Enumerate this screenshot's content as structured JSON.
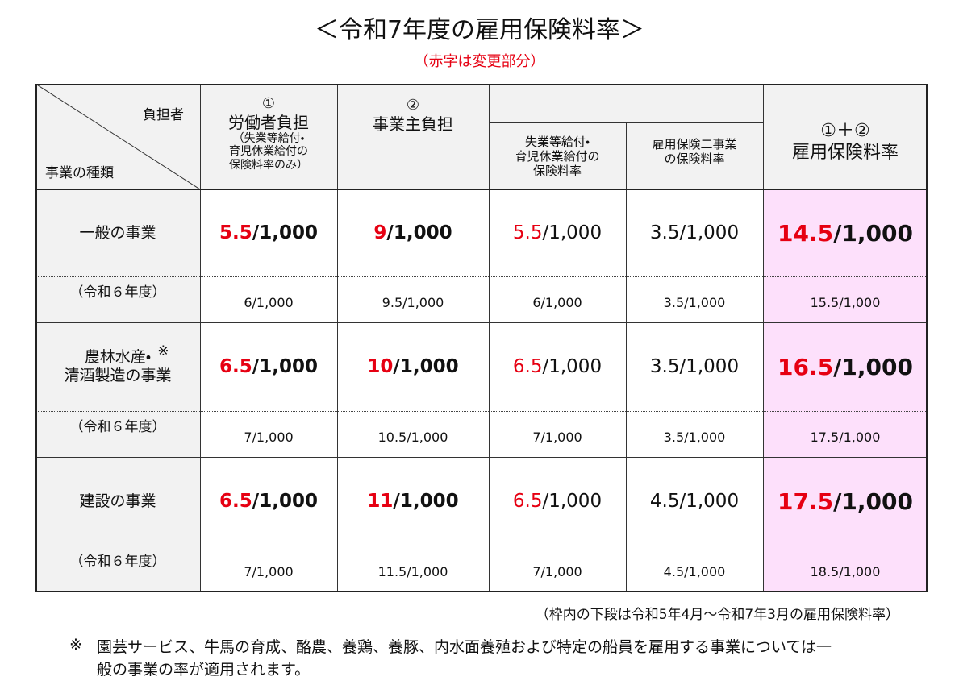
{
  "title": "＜令和7年度の雇用保険料率＞",
  "subtitle": "（赤字は変更部分）",
  "table": {
    "header": {
      "corner_top": "負担者",
      "corner_bottom": "事業の種類",
      "worker": {
        "mark": "①",
        "label": "労働者負担",
        "note": [
          "（失業等給付・",
          "育児休業給付の",
          "保険料率のみ）"
        ]
      },
      "employer": {
        "mark": "②",
        "label": "事業主負担"
      },
      "employer_sub1": [
        "失業等給付・",
        "育児休業給付の",
        "保険料率"
      ],
      "employer_sub2": [
        "雇用保険二事業",
        "の保険料率"
      ],
      "total": {
        "mark": "①＋②",
        "label": "雇用保険料率"
      }
    },
    "rows": [
      {
        "type": [
          "一般の事業"
        ],
        "current": [
          [
            {
              "text": "5.5",
              "color": "#e60012"
            },
            {
              "text": "/1,000"
            }
          ],
          [
            {
              "text": "9",
              "color": "#e60012"
            },
            {
              "text": "/1,000"
            }
          ],
          [
            {
              "text": "5.5",
              "color": "#e60012"
            },
            {
              "text": "/1,000"
            }
          ],
          [
            {
              "text": "3.5/1,000"
            }
          ],
          [
            {
              "text": "14.5",
              "color": "#e60012"
            },
            {
              "text": "/1,000"
            }
          ]
        ],
        "previous_label": "（令和６年度）",
        "previous": [
          "6/1,000",
          "9.5/1,000",
          "6/1,000",
          "3.5/1,000",
          "15.5/1,000"
        ]
      },
      {
        "type": [
          "農林水産・",
          "清酒製造の事業"
        ],
        "mark": "※",
        "current": [
          [
            {
              "text": "6.5",
              "color": "#e60012"
            },
            {
              "text": "/1,000"
            }
          ],
          [
            {
              "text": "10",
              "color": "#e60012"
            },
            {
              "text": "/1,000"
            }
          ],
          [
            {
              "text": "6.5",
              "color": "#e60012"
            },
            {
              "text": "/1,000"
            }
          ],
          [
            {
              "text": "3.5/1,000"
            }
          ],
          [
            {
              "text": "16.5",
              "color": "#e60012"
            },
            {
              "text": "/1,000"
            }
          ]
        ],
        "previous_label": "（令和６年度）",
        "previous": [
          "7/1,000",
          "10.5/1,000",
          "7/1,000",
          "3.5/1,000",
          "17.5/1,000"
        ]
      },
      {
        "type": [
          "建設の事業"
        ],
        "current": [
          [
            {
              "text": "6.5",
              "color": "#e60012"
            },
            {
              "text": "/1,000"
            }
          ],
          [
            {
              "text": "11",
              "color": "#e60012"
            },
            {
              "text": "/1,000"
            }
          ],
          [
            {
              "text": "6.5",
              "color": "#e60012"
            },
            {
              "text": "/1,000"
            }
          ],
          [
            {
              "text": "4.5/1,000"
            }
          ],
          [
            {
              "text": "17.5",
              "color": "#e60012"
            },
            {
              "text": "/1,000"
            }
          ]
        ],
        "previous_label": "（令和６年度）",
        "previous": [
          "7/1,000",
          "11.5/1,000",
          "7/1,000",
          "4.5/1,000",
          "18.5/1,000"
        ]
      }
    ]
  },
  "footnote": "（枠内の下段は令和5年4月～令和7年3月の雇用保険料率）",
  "note": {
    "mark": "※",
    "lines": [
      "園芸サービス、牛馬の育成、酪農、養鶏、養豚、内水面養殖および特定の船員を雇用する事業については一",
      "般の事業の率が適用されます。"
    ]
  }
}
